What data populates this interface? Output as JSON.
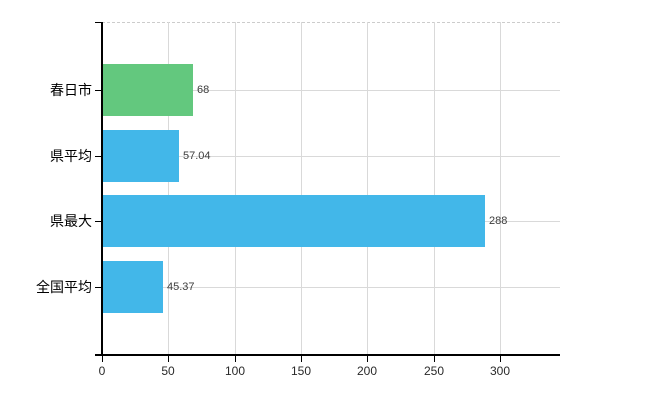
{
  "chart_data": {
    "type": "bar",
    "orientation": "horizontal",
    "title": "",
    "xlabel": "",
    "ylabel": "",
    "categories": [
      "春日市",
      "県平均",
      "県最大",
      "全国平均"
    ],
    "series": [
      {
        "name": "値",
        "values": [
          68,
          57.04,
          288,
          45.37
        ],
        "value_labels": [
          "68",
          "57.04",
          "288",
          "45.37"
        ]
      }
    ],
    "bar_colors": [
      "#63c87e",
      "#42b7e9",
      "#42b7e9",
      "#42b7e9"
    ],
    "x_ticks": [
      0,
      50,
      100,
      150,
      200,
      250,
      300
    ],
    "x_tick_labels": [
      "0",
      "50",
      "100",
      "150",
      "200",
      "250",
      "300"
    ],
    "xlim": [
      0,
      345
    ],
    "grid": true,
    "legend_position": "none"
  },
  "colors": {
    "background": "#ffffff",
    "grid": "#d9d9d9",
    "plot_top_border": "#cccccc",
    "axis": "#000000",
    "bar_green": "#63c87e",
    "bar_blue": "#42b7e9",
    "value_label": "#3c3c3c",
    "tick_label": "#2a2a2a",
    "category_label": "#000000"
  }
}
